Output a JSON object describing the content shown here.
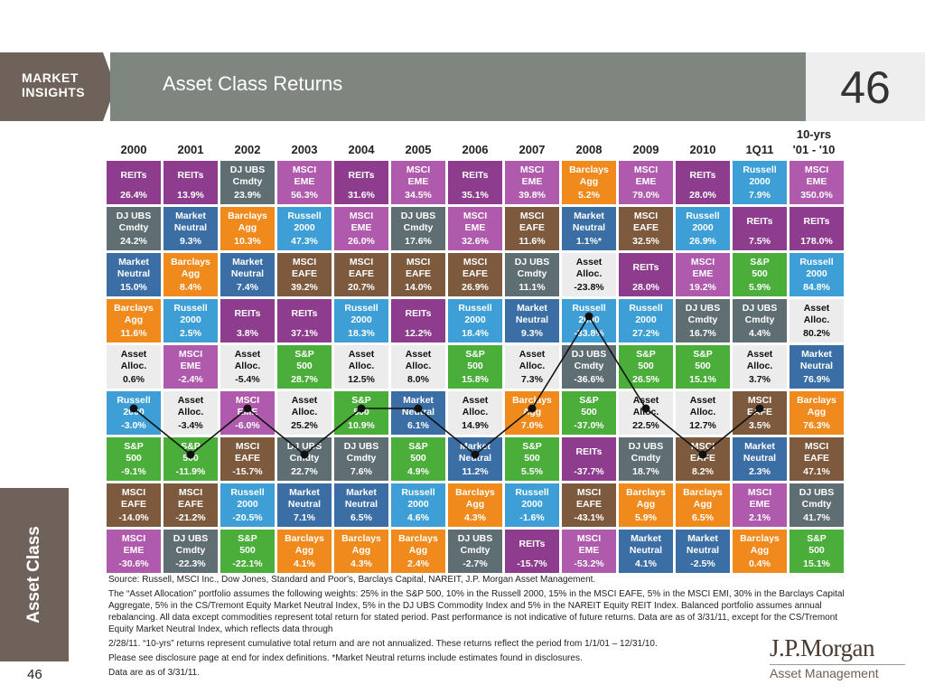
{
  "header": {
    "brand": "MARKET\nINSIGHTS",
    "title": "Asset Class Returns",
    "page_number": "46"
  },
  "sidebar": {
    "label": "Asset Class"
  },
  "footer_page_number": "46",
  "columns": {
    "years": [
      "2000",
      "2001",
      "2002",
      "2003",
      "2004",
      "2005",
      "2006",
      "2007",
      "2008",
      "2009",
      "2010",
      "1Q11"
    ],
    "ten_year_label_line1": "10-yrs",
    "ten_year_label_line2": "'01 - '10"
  },
  "chart_data": {
    "type": "table",
    "title": "Asset Class Returns",
    "column_headers": [
      "2000",
      "2001",
      "2002",
      "2003",
      "2004",
      "2005",
      "2006",
      "2007",
      "2008",
      "2009",
      "2010",
      "1Q11",
      "10-yrs '01 - '10"
    ],
    "rows": [
      [
        {
          "name": "REITs",
          "value": "26.4%",
          "cls": "REITs"
        },
        {
          "name": "REITs",
          "value": "13.9%",
          "cls": "REITs"
        },
        {
          "name": "DJ UBS\nCmdty",
          "value": "23.9%",
          "cls": "DJUBS"
        },
        {
          "name": "MSCI\nEME",
          "value": "56.3%",
          "cls": "MSCIEME"
        },
        {
          "name": "REITs",
          "value": "31.6%",
          "cls": "REITs"
        },
        {
          "name": "MSCI\nEME",
          "value": "34.5%",
          "cls": "MSCIEME"
        },
        {
          "name": "REITs",
          "value": "35.1%",
          "cls": "REITs"
        },
        {
          "name": "MSCI\nEME",
          "value": "39.8%",
          "cls": "MSCIEME"
        },
        {
          "name": "Barclays\nAgg",
          "value": "5.2%",
          "cls": "Barclays"
        },
        {
          "name": "MSCI\nEME",
          "value": "79.0%",
          "cls": "MSCIEME"
        },
        {
          "name": "REITs",
          "value": "28.0%",
          "cls": "REITs"
        },
        {
          "name": "Russell\n2000",
          "value": "7.9%",
          "cls": "Russell"
        },
        {
          "name": "MSCI\nEME",
          "value": "350.0%",
          "cls": "MSCIEME"
        }
      ],
      [
        {
          "name": "DJ UBS\nCmdty",
          "value": "24.2%",
          "cls": "DJUBS"
        },
        {
          "name": "Market\nNeutral",
          "value": "9.3%",
          "cls": "Market"
        },
        {
          "name": "Barclays\nAgg",
          "value": "10.3%",
          "cls": "Barclays"
        },
        {
          "name": "Russell\n2000",
          "value": "47.3%",
          "cls": "Russell"
        },
        {
          "name": "MSCI\nEME",
          "value": "26.0%",
          "cls": "MSCIEME"
        },
        {
          "name": "DJ UBS\nCmdty",
          "value": "17.6%",
          "cls": "DJUBS"
        },
        {
          "name": "MSCI\nEME",
          "value": "32.6%",
          "cls": "MSCIEME"
        },
        {
          "name": "MSCI\nEAFE",
          "value": "11.6%",
          "cls": "MSCIEAFE"
        },
        {
          "name": "Market\nNeutral",
          "value": "1.1%*",
          "cls": "Market"
        },
        {
          "name": "MSCI\nEAFE",
          "value": "32.5%",
          "cls": "MSCIEAFE"
        },
        {
          "name": "Russell\n2000",
          "value": "26.9%",
          "cls": "Russell"
        },
        {
          "name": "REITs",
          "value": "7.5%",
          "cls": "REITs"
        },
        {
          "name": "REITs",
          "value": "178.0%",
          "cls": "REITs"
        }
      ],
      [
        {
          "name": "Market\nNeutral",
          "value": "15.0%",
          "cls": "Market"
        },
        {
          "name": "Barclays\nAgg",
          "value": "8.4%",
          "cls": "Barclays"
        },
        {
          "name": "Market\nNeutral",
          "value": "7.4%",
          "cls": "Market"
        },
        {
          "name": "MSCI\nEAFE",
          "value": "39.2%",
          "cls": "MSCIEAFE"
        },
        {
          "name": "MSCI\nEAFE",
          "value": "20.7%",
          "cls": "MSCIEAFE"
        },
        {
          "name": "MSCI\nEAFE",
          "value": "14.0%",
          "cls": "MSCIEAFE"
        },
        {
          "name": "MSCI\nEAFE",
          "value": "26.9%",
          "cls": "MSCIEAFE"
        },
        {
          "name": "DJ UBS\nCmdty",
          "value": "11.1%",
          "cls": "DJUBS"
        },
        {
          "name": "Asset\nAlloc.",
          "value": "-23.8%",
          "cls": "Asset"
        },
        {
          "name": "REITs",
          "value": "28.0%",
          "cls": "REITs"
        },
        {
          "name": "MSCI\nEME",
          "value": "19.2%",
          "cls": "MSCIEME"
        },
        {
          "name": "S&P\n500",
          "value": "5.9%",
          "cls": "SP"
        },
        {
          "name": "Russell\n2000",
          "value": "84.8%",
          "cls": "Russell"
        }
      ],
      [
        {
          "name": "Barclays\nAgg",
          "value": "11.6%",
          "cls": "Barclays"
        },
        {
          "name": "Russell\n2000",
          "value": "2.5%",
          "cls": "Russell"
        },
        {
          "name": "REITs",
          "value": "3.8%",
          "cls": "REITs"
        },
        {
          "name": "REITs",
          "value": "37.1%",
          "cls": "REITs"
        },
        {
          "name": "Russell\n2000",
          "value": "18.3%",
          "cls": "Russell"
        },
        {
          "name": "REITs",
          "value": "12.2%",
          "cls": "REITs"
        },
        {
          "name": "Russell\n2000",
          "value": "18.4%",
          "cls": "Russell"
        },
        {
          "name": "Market\nNeutral",
          "value": "9.3%",
          "cls": "Market"
        },
        {
          "name": "Russell\n2000",
          "value": "-33.8%",
          "cls": "Russell"
        },
        {
          "name": "Russell\n2000",
          "value": "27.2%",
          "cls": "Russell"
        },
        {
          "name": "DJ UBS\nCmdty",
          "value": "16.7%",
          "cls": "DJUBS"
        },
        {
          "name": "DJ UBS\nCmdty",
          "value": "4.4%",
          "cls": "DJUBS"
        },
        {
          "name": "Asset\nAlloc.",
          "value": "80.2%",
          "cls": "Asset"
        }
      ],
      [
        {
          "name": "Asset\nAlloc.",
          "value": "0.6%",
          "cls": "Asset"
        },
        {
          "name": "MSCI\nEME",
          "value": "-2.4%",
          "cls": "MSCIEME"
        },
        {
          "name": "Asset\nAlloc.",
          "value": "-5.4%",
          "cls": "Asset"
        },
        {
          "name": "S&P\n500",
          "value": "28.7%",
          "cls": "SP"
        },
        {
          "name": "Asset\nAlloc.",
          "value": "12.5%",
          "cls": "Asset"
        },
        {
          "name": "Asset\nAlloc.",
          "value": "8.0%",
          "cls": "Asset"
        },
        {
          "name": "S&P\n500",
          "value": "15.8%",
          "cls": "SP"
        },
        {
          "name": "Asset\nAlloc.",
          "value": "7.3%",
          "cls": "Asset"
        },
        {
          "name": "DJ UBS\nCmdty",
          "value": "-36.6%",
          "cls": "DJUBS"
        },
        {
          "name": "S&P\n500",
          "value": "26.5%",
          "cls": "SP"
        },
        {
          "name": "S&P\n500",
          "value": "15.1%",
          "cls": "SP"
        },
        {
          "name": "Asset\nAlloc.",
          "value": "3.7%",
          "cls": "Asset"
        },
        {
          "name": "Market\nNeutral",
          "value": "76.9%",
          "cls": "Market"
        }
      ],
      [
        {
          "name": "Russell\n2000",
          "value": "-3.0%",
          "cls": "Russell"
        },
        {
          "name": "Asset\nAlloc.",
          "value": "-3.4%",
          "cls": "Asset"
        },
        {
          "name": "MSCI\nEME",
          "value": "-6.0%",
          "cls": "MSCIEME"
        },
        {
          "name": "Asset\nAlloc.",
          "value": "25.2%",
          "cls": "Asset"
        },
        {
          "name": "S&P\n500",
          "value": "10.9%",
          "cls": "SP"
        },
        {
          "name": "Market\nNeutral",
          "value": "6.1%",
          "cls": "Market"
        },
        {
          "name": "Asset\nAlloc.",
          "value": "14.9%",
          "cls": "Asset"
        },
        {
          "name": "Barclays\nAgg",
          "value": "7.0%",
          "cls": "Barclays"
        },
        {
          "name": "S&P\n500",
          "value": "-37.0%",
          "cls": "SP"
        },
        {
          "name": "Asset\nAlloc.",
          "value": "22.5%",
          "cls": "Asset"
        },
        {
          "name": "Asset\nAlloc.",
          "value": "12.7%",
          "cls": "Asset"
        },
        {
          "name": "MSCI\nEAFE",
          "value": "3.5%",
          "cls": "MSCIEAFE"
        },
        {
          "name": "Barclays\nAgg",
          "value": "76.3%",
          "cls": "Barclays"
        }
      ],
      [
        {
          "name": "S&P\n500",
          "value": "-9.1%",
          "cls": "SP"
        },
        {
          "name": "S&P\n500",
          "value": "-11.9%",
          "cls": "SP"
        },
        {
          "name": "MSCI\nEAFE",
          "value": "-15.7%",
          "cls": "MSCIEAFE"
        },
        {
          "name": "DJ UBS\nCmdty",
          "value": "22.7%",
          "cls": "DJUBS"
        },
        {
          "name": "DJ UBS\nCmdty",
          "value": "7.6%",
          "cls": "DJUBS"
        },
        {
          "name": "S&P\n500",
          "value": "4.9%",
          "cls": "SP"
        },
        {
          "name": "Market\nNeutral",
          "value": "11.2%",
          "cls": "Market"
        },
        {
          "name": "S&P\n500",
          "value": "5.5%",
          "cls": "SP"
        },
        {
          "name": "REITs",
          "value": "-37.7%",
          "cls": "REITs"
        },
        {
          "name": "DJ UBS\nCmdty",
          "value": "18.7%",
          "cls": "DJUBS"
        },
        {
          "name": "MSCI\nEAFE",
          "value": "8.2%",
          "cls": "MSCIEAFE"
        },
        {
          "name": "Market\nNeutral",
          "value": "2.3%",
          "cls": "Market"
        },
        {
          "name": "MSCI\nEAFE",
          "value": "47.1%",
          "cls": "MSCIEAFE"
        }
      ],
      [
        {
          "name": "MSCI\nEAFE",
          "value": "-14.0%",
          "cls": "MSCIEAFE"
        },
        {
          "name": "MSCI\nEAFE",
          "value": "-21.2%",
          "cls": "MSCIEAFE"
        },
        {
          "name": "Russell\n2000",
          "value": "-20.5%",
          "cls": "Russell"
        },
        {
          "name": "Market\nNeutral",
          "value": "7.1%",
          "cls": "Market"
        },
        {
          "name": "Market\nNeutral",
          "value": "6.5%",
          "cls": "Market"
        },
        {
          "name": "Russell\n2000",
          "value": "4.6%",
          "cls": "Russell"
        },
        {
          "name": "Barclays\nAgg",
          "value": "4.3%",
          "cls": "Barclays"
        },
        {
          "name": "Russell\n2000",
          "value": "-1.6%",
          "cls": "Russell"
        },
        {
          "name": "MSCI\nEAFE",
          "value": "-43.1%",
          "cls": "MSCIEAFE"
        },
        {
          "name": "Barclays\nAgg",
          "value": "5.9%",
          "cls": "Barclays"
        },
        {
          "name": "Barclays\nAgg",
          "value": "6.5%",
          "cls": "Barclays"
        },
        {
          "name": "MSCI\nEME",
          "value": "2.1%",
          "cls": "MSCIEME"
        },
        {
          "name": "DJ UBS\nCmdty",
          "value": "41.7%",
          "cls": "DJUBS"
        }
      ],
      [
        {
          "name": "MSCI\nEME",
          "value": "-30.6%",
          "cls": "MSCIEME"
        },
        {
          "name": "DJ UBS\nCmdty",
          "value": "-22.3%",
          "cls": "DJUBS"
        },
        {
          "name": "S&P\n500",
          "value": "-22.1%",
          "cls": "SP"
        },
        {
          "name": "Barclays\nAgg",
          "value": "4.1%",
          "cls": "Barclays"
        },
        {
          "name": "Barclays\nAgg",
          "value": "4.3%",
          "cls": "Barclays"
        },
        {
          "name": "Barclays\nAgg",
          "value": "2.4%",
          "cls": "Barclays"
        },
        {
          "name": "DJ UBS\nCmdty",
          "value": "-2.7%",
          "cls": "DJUBS"
        },
        {
          "name": "REITs",
          "value": "-15.7%",
          "cls": "REITs"
        },
        {
          "name": "MSCI\nEME",
          "value": "-53.2%",
          "cls": "MSCIEME"
        },
        {
          "name": "Market\nNeutral",
          "value": "4.1%",
          "cls": "Market"
        },
        {
          "name": "Market\nNeutral",
          "value": "-2.5%",
          "cls": "Market"
        },
        {
          "name": "Barclays\nAgg",
          "value": "0.4%",
          "cls": "Barclays"
        },
        {
          "name": "S&P\n500",
          "value": "15.1%",
          "cls": "SP"
        }
      ]
    ],
    "asset_alloc_rank_by_year": [
      5,
      6,
      5,
      6,
      5,
      5,
      6,
      5,
      3,
      5,
      6,
      5
    ],
    "colors": {
      "REITs": "#8e3c8e",
      "MSCIEME": "#b05aad",
      "DJUBS": "#5f6e73",
      "Barclays": "#f08a1d",
      "Russell": "#3e9fd6",
      "MSCIEAFE": "#7d5a3d",
      "Market": "#3a6ea5",
      "SP": "#4cae3a",
      "Asset": "#ececec"
    }
  },
  "notes": {
    "source": "Source: Russell, MSCI Inc., Dow Jones, Standard and Poor's, Barclays Capital, NAREIT, J.P. Morgan Asset Management.",
    "p1": "The “Asset Allocation” portfolio assumes the following weights: 25% in the S&P 500, 10% in the Russell 2000, 15% in the MSCI EAFE, 5% in the MSCI EMI, 30% in the Barclays Capital Aggregate, 5% in the CS/Tremont Equity Market Neutral Index, 5% in the DJ UBS Commodity Index and 5% in the NAREIT Equity REIT Index. Balanced portfolio assumes annual rebalancing. All data except commodities represent total return for stated period. Past performance is not indicative of future returns. Data are as of 3/31/11, except for the CS/Tremont Equity Market Neutral Index, which reflects data through",
    "p2": "2/28/11. “10-yrs” returns represent cumulative total return and are not annualized. These returns reflect the period from 1/1/01 – 12/31/10.",
    "p3": "Please see disclosure page at end for index definitions. *Market Neutral returns include estimates found in disclosures.",
    "p4": "Data are as of 3/31/11."
  },
  "logo": {
    "name": "J.P.Morgan",
    "sub": "Asset Management"
  }
}
